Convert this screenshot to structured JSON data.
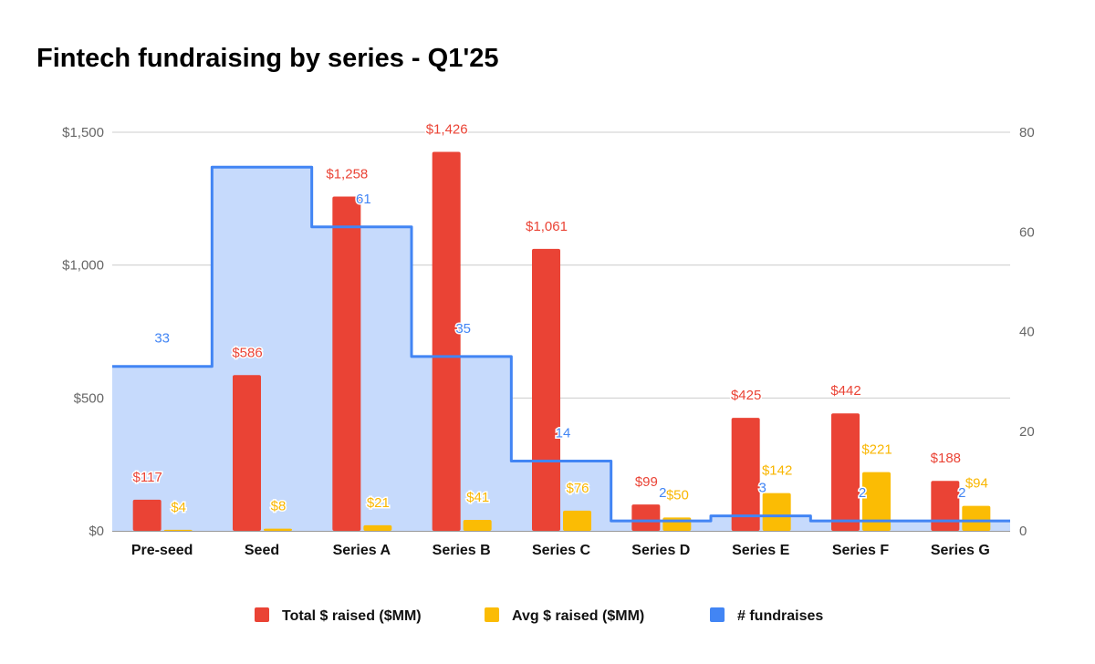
{
  "chart_data": {
    "type": "bar",
    "title": "Fintech fundraising by series - Q1'25",
    "categories": [
      "Pre-seed",
      "Seed",
      "Series A",
      "Series B",
      "Series C",
      "Series D",
      "Series E",
      "Series F",
      "Series G"
    ],
    "series": [
      {
        "name": "Total $ raised ($MM)",
        "axis": "left",
        "kind": "bar",
        "color": "#ea4335",
        "values": [
          117,
          586,
          1258,
          1426,
          1061,
          99,
          425,
          442,
          188
        ],
        "labels": [
          "$117",
          "$586",
          "$1,258",
          "$1,426",
          "$1,061",
          "$99",
          "$425",
          "$442",
          "$188"
        ]
      },
      {
        "name": "Avg $ raised ($MM)",
        "axis": "left",
        "kind": "bar",
        "color": "#fbbc04",
        "values": [
          4,
          8,
          21,
          41,
          76,
          50,
          142,
          221,
          94
        ],
        "labels": [
          "$4",
          "$8",
          "$21",
          "$41",
          "$76",
          "$50",
          "$142",
          "$221",
          "$94"
        ]
      },
      {
        "name": "# fundraises",
        "axis": "right",
        "kind": "stepped-area",
        "color": "#4285f4",
        "values": [
          33,
          73,
          61,
          35,
          14,
          2,
          3,
          2,
          2
        ],
        "labels": [
          "33",
          "",
          "61",
          "35",
          "14",
          "2",
          "3",
          "2",
          "2"
        ]
      }
    ],
    "left_axis": {
      "ylim": [
        0,
        1500
      ],
      "ticks": [
        0,
        500,
        1000,
        1500
      ],
      "tick_labels": [
        "$0",
        "$500",
        "$1,000",
        "$1,500"
      ]
    },
    "right_axis": {
      "ylim": [
        0,
        80
      ],
      "ticks": [
        0,
        20,
        40,
        60,
        80
      ],
      "tick_labels": [
        "0",
        "20",
        "40",
        "60",
        "80"
      ]
    },
    "grid": true,
    "legend": "bottom"
  }
}
